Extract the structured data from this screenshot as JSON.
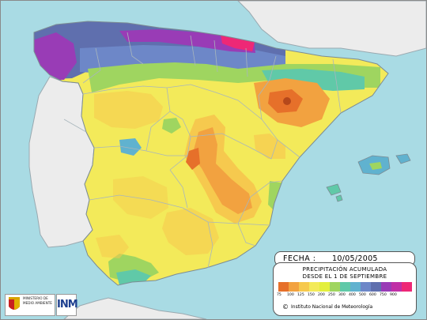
{
  "date": {
    "label": "FECHA :",
    "value": "10/05/2005"
  },
  "legend": {
    "title_line1": "PRECIPITACIÓN ACUMULADA",
    "title_line2": "DESDE EL 1 DE SEPTIEMBRE",
    "classes": [
      {
        "value": "75",
        "color": "#e6702a"
      },
      {
        "value": "100",
        "color": "#f2a240"
      },
      {
        "value": "125",
        "color": "#f6c94e"
      },
      {
        "value": "150",
        "color": "#f3ea5a"
      },
      {
        "value": "200",
        "color": "#e3ef3d"
      },
      {
        "value": "250",
        "color": "#9fd560"
      },
      {
        "value": "300",
        "color": "#60c9a8"
      },
      {
        "value": "400",
        "color": "#60b2cf"
      },
      {
        "value": "500",
        "color": "#6d87c8"
      },
      {
        "value": "600",
        "color": "#5f6fae"
      },
      {
        "value": "750",
        "color": "#993cb6"
      },
      {
        "value": "900",
        "color": "#c02fa6"
      },
      {
        "value": "",
        "color": "#ee2876"
      }
    ],
    "credit": "Instituto Nacional de Meteorología",
    "copyright_symbol": "©"
  },
  "logos": {
    "ministry": "MINISTERIO DE MEDIO AMBIENTE",
    "inm": "INM"
  },
  "colors": {
    "sea": "#a9dbe4",
    "land_neighbor": "#ececec",
    "borders": "#8fa0a8"
  }
}
